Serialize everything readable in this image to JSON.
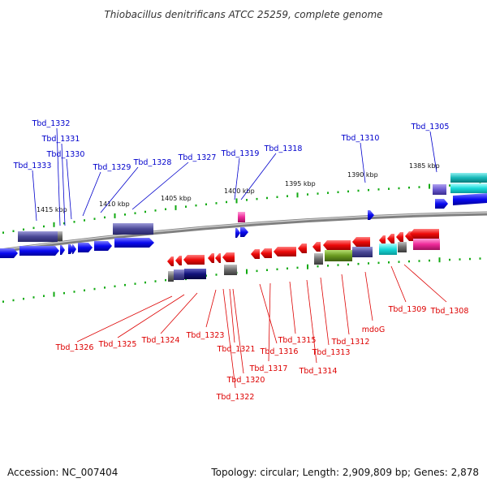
{
  "title": "Thiobacillus denitrificans ATCC 25259, complete genome",
  "footer": {
    "accession": "Accession: NC_007404",
    "topology": "Topology: circular; Length: 2,909,809 bp; Genes: 2,878"
  },
  "colors": {
    "forward_label": "#0000cc",
    "reverse_label": "#dd0000",
    "forward_cds": "#0a0af0",
    "reverse_cds": "#ee0a0a",
    "backbone": "#8c8c8c",
    "tick": "#11aa11"
  },
  "kbp_labels": [
    "1415 kbp",
    "1410 kbp",
    "1405 kbp",
    "1400 kbp",
    "1395 kbp",
    "1390 kbp",
    "1385 kbp"
  ],
  "forward_genes": [
    "Tbd_1333",
    "Tbd_1332",
    "Tbd_1331",
    "Tbd_1330",
    "Tbd_1329",
    "Tbd_1328",
    "Tbd_1327",
    "Tbd_1319",
    "Tbd_1318",
    "Tbd_1310",
    "Tbd_1305"
  ],
  "reverse_genes": [
    "Tbd_1326",
    "Tbd_1325",
    "Tbd_1324",
    "Tbd_1323",
    "Tbd_1321",
    "Tbd_1316",
    "Tbd_1320",
    "Tbd_1317",
    "Tbd_1322",
    "Tbd_1315",
    "Tbd_1314",
    "Tbd_1313",
    "Tbd_1312",
    "mdoG",
    "Tbd_1309",
    "Tbd_1308"
  ]
}
